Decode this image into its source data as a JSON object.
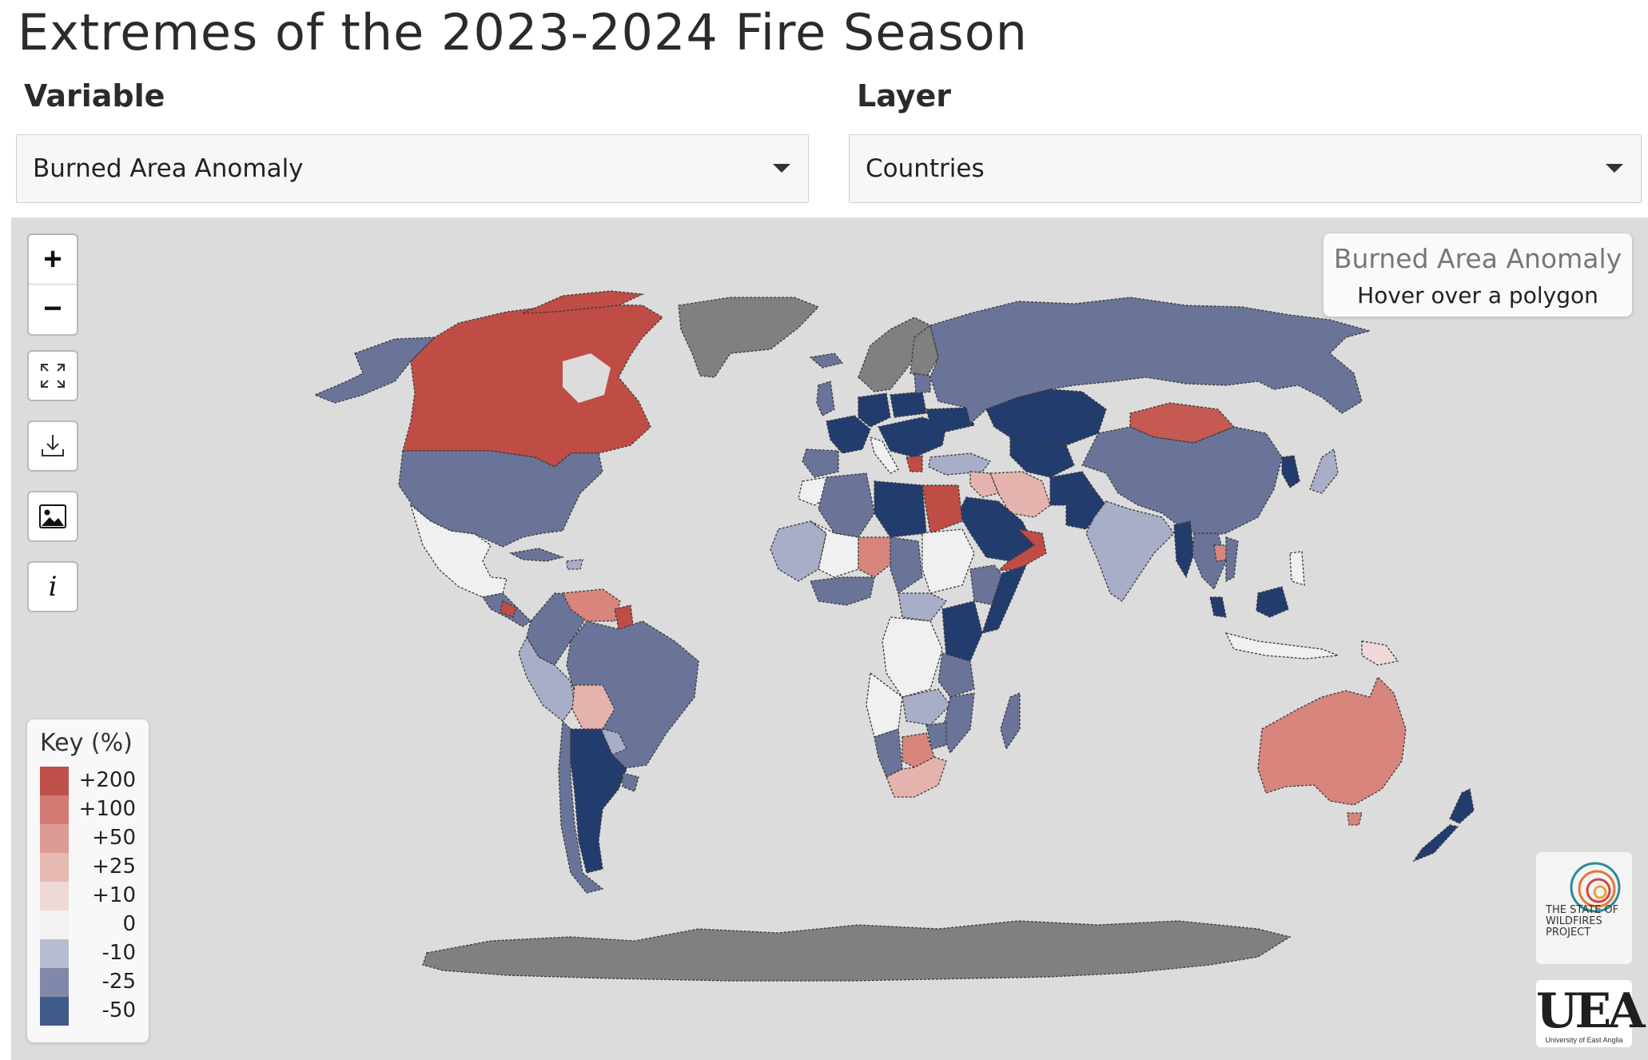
{
  "page": {
    "title": "Extremes of the 2023-2024 Fire Season"
  },
  "controls": {
    "variable": {
      "label": "Variable",
      "value": "Burned Area Anomaly"
    },
    "layer": {
      "label": "Layer",
      "value": "Countries"
    }
  },
  "map": {
    "info_box": {
      "title": "Burned Area Anomaly",
      "hint": "Hover over a polygon"
    },
    "toolbar": {
      "zoom_in": "+",
      "zoom_out": "−",
      "info": "i"
    },
    "legend": {
      "title": "Key (%)",
      "items": [
        {
          "label": "+200",
          "color": "#c0504a"
        },
        {
          "label": "+100",
          "color": "#d27a73"
        },
        {
          "label": "+50",
          "color": "#dc9b94"
        },
        {
          "label": "+25",
          "color": "#e6b9b3"
        },
        {
          "label": "+10",
          "color": "#efd9d6"
        },
        {
          "label": "0",
          "color": "#f2f2f2"
        },
        {
          "label": "-10",
          "color": "#b7bcd1"
        },
        {
          "label": "-25",
          "color": "#8188a9"
        },
        {
          "label": "-50",
          "color": "#3f5a88"
        }
      ]
    },
    "colors": {
      "background": "#dcdcdc",
      "no_data": "#808080",
      "strong_decrease": "#233c6e",
      "decrease": "#6a7499",
      "slight_decrease": "#a8adc8",
      "neutral": "#f0f0f0",
      "slight_increase": "#e5b3ad",
      "increase": "#d7857d",
      "strong_increase": "#bf4d45"
    },
    "logos": {
      "state_of_wildfires": "THE STATE OF WILDFIRES PROJECT",
      "uea_mark": "UEA",
      "uea_caption": "University of East Anglia"
    }
  }
}
